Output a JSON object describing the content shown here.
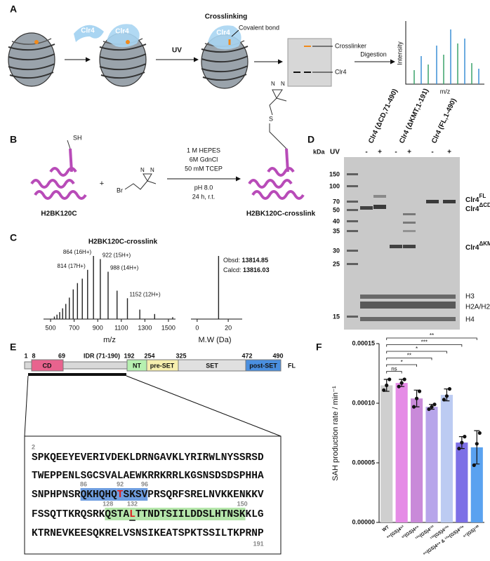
{
  "panel_labels": [
    "A",
    "B",
    "C",
    "D",
    "E",
    "F"
  ],
  "panel_a": {
    "enzyme_labels": [
      "Clr4",
      "Clr4",
      "Clr4"
    ],
    "uv": "UV",
    "crosslinking": "Crosslinking",
    "covalent_bond": "Covalent bond",
    "crosslinker": "Crosslinker",
    "clr4_band": "Clr4",
    "digestion": "Digestion",
    "y_label": "Intensity",
    "x_label": "m/z"
  },
  "panel_b": {
    "sh": "SH",
    "br": "Br",
    "plus": "+",
    "reagent_atoms": [
      "N",
      "N"
    ],
    "product_atoms": [
      "N",
      "N"
    ],
    "s": "S",
    "conditions_above": [
      "1 M HEPES",
      "6M GdnCl",
      "50 mM TCEP"
    ],
    "conditions_below": [
      "pH 8.0",
      "24 h, r.t."
    ],
    "reactant": "H2BK120C",
    "product": "H2BK120C-crosslink"
  },
  "panel_c": {
    "title": "H2BK120C-crosslink",
    "obsd_label": "Obsd:",
    "obsd": "13814.85",
    "calcd_label": "Calcd:",
    "calcd": "13816.03"
  },
  "panel_d": {
    "lane_headers": [
      "Clr4 (ΔCD,71-490)",
      "Clr4 (ΔKMT,1-191)",
      "Clr4 (FL,1-490)"
    ],
    "kda": "kDa",
    "uv": "UV",
    "uv_states": [
      "-",
      "+",
      "-",
      "+",
      "-",
      "+"
    ],
    "markers": [
      150,
      100,
      70,
      50,
      40,
      35,
      30,
      25,
      15
    ],
    "band_labels": [
      {
        "text": "Clr4",
        "sup": "FL"
      },
      {
        "text": "Clr4",
        "sup": "ΔCD"
      },
      {
        "text": "Clr4",
        "sup": "ΔKMT"
      },
      {
        "text": "H3"
      },
      {
        "text": "H2A/H2B"
      },
      {
        "text": "H4"
      }
    ]
  },
  "panel_e": {
    "domain_numbers": [
      "1",
      "8",
      "69",
      "192",
      "254",
      "325",
      "472",
      "490"
    ],
    "idr": "IDR (71-190)",
    "domains": [
      "CD",
      "NT",
      "pre-SET",
      "SET",
      "post-SET"
    ],
    "fl": "FL",
    "sequence": {
      "start": "2",
      "end": "191",
      "residue_marks": [
        "86",
        "92",
        "96",
        "128",
        "132",
        "150"
      ],
      "lines": [
        [
          {
            "text": "SPKQEEYEVERIVDEKLDRNGAVKLYRIRWLNYSSRSD"
          }
        ],
        [
          {
            "text": "TWEPPENLSGCSVALAEWKRRKRRLKGSNSDSDSPHHA"
          }
        ],
        [
          {
            "text": "SNPHPNSR"
          },
          {
            "text": "QKHQHQ",
            "highlight": "#6f9ee0"
          },
          {
            "text": "T",
            "highlight": "#6f9ee0",
            "color": "#e02020"
          },
          {
            "text": "SKSV",
            "highlight": "#6f9ee0"
          },
          {
            "text": "PRSQRFSRELNVKKENKKV"
          }
        ],
        [
          {
            "text": "FSSQTTKRQSRK"
          },
          {
            "text": "QSTA",
            "highlight": "#b5e6ab"
          },
          {
            "text": "L",
            "highlight": "#b5e6ab",
            "color": "#e02020",
            "underline": true
          },
          {
            "text": "TTNDTSIILDDSLHTNSK",
            "highlight": "#b5e6ab"
          },
          {
            "text": "KLG"
          }
        ],
        [
          {
            "text": "KTRNEVKEESQKRELVSNSIKEATSPKTSSILTKPRNP"
          }
        ]
      ]
    }
  },
  "chart_data": [
    {
      "type": "stem",
      "x_label": "m/z",
      "xlim": [
        440,
        1560
      ],
      "xticks": [
        500,
        700,
        900,
        1100,
        1300,
        1500
      ],
      "ylim": [
        0,
        100
      ],
      "color": "#222222",
      "x": [
        532,
        554,
        577,
        602,
        629,
        659,
        692,
        728,
        769,
        814,
        864,
        922,
        988,
        1064,
        1152,
        1257,
        1383,
        1536
      ],
      "values": [
        4,
        7,
        11,
        17,
        24,
        34,
        47,
        57,
        64,
        78,
        100,
        95,
        75,
        45,
        33,
        15,
        8,
        3
      ],
      "annotations": [
        {
          "x": 864,
          "text": "864 (16H+)"
        },
        {
          "x": 814,
          "text": "814 (17H+)"
        },
        {
          "x": 922,
          "text": "922 (15H+)"
        },
        {
          "x": 988,
          "text": "988 (14H+)"
        },
        {
          "x": 1152,
          "text": "1152 (12H+)"
        }
      ]
    },
    {
      "type": "stem",
      "x_label": "M.W (Da)",
      "xlim": [
        -4,
        29
      ],
      "xticks": [
        0,
        20
      ],
      "ylim": [
        0,
        100
      ],
      "color": "#222222",
      "x": [
        13.8
      ],
      "values": [
        100
      ]
    },
    {
      "type": "bar",
      "y_label": "SAH production rate / min⁻¹",
      "ylim": [
        0,
        0.00015
      ],
      "yticks": [
        {
          "value": 0,
          "label": "0.00000"
        },
        {
          "value": 5e-05,
          "label": "0.00005"
        },
        {
          "value": 0.0001,
          "label": "0.00010"
        },
        {
          "value": 0.00015,
          "label": "0.00015"
        }
      ],
      "categories": [
        "WT",
        "⁸⁶(GS)4⁹³",
        "⁹²(GS)4⁹⁹",
        "¹²⁶(GS)4¹³²",
        "¹³²(GS)4¹³⁹",
        "⁸⁶(GS)4⁹⁹ & ¹²⁶(GS)4¹³⁹",
        "⁸⁷(GS)¹³⁰"
      ],
      "colors": [
        "#cfcfcf",
        "#e58be6",
        "#c98ad9",
        "#b7a5ea",
        "#bccbf2",
        "#7d70e6",
        "#5aa2f0"
      ],
      "values": [
        0.000115,
        0.000117,
        0.000104,
        9.7e-05,
        0.000107,
        6.7e-05,
        6.3e-05
      ],
      "errors": [
        5e-06,
        3e-06,
        7e-06,
        2e-06,
        5e-06,
        5e-06,
        1.4e-05
      ],
      "points": [
        [
          0.000111,
          0.000115,
          0.00012
        ],
        [
          0.000114,
          0.000117,
          0.00012
        ],
        [
          9.7e-05,
          0.000104,
          0.00011
        ],
        [
          9.5e-05,
          9.7e-05,
          9.9e-05
        ],
        [
          0.000103,
          0.000106,
          0.000112
        ],
        [
          6.2e-05,
          6.7e-05,
          7.2e-05
        ],
        [
          4.8e-05,
          6.6e-05,
          7.5e-05
        ]
      ],
      "significance": [
        null,
        "ns",
        "*",
        "**",
        "*",
        "***",
        "**"
      ]
    }
  ]
}
